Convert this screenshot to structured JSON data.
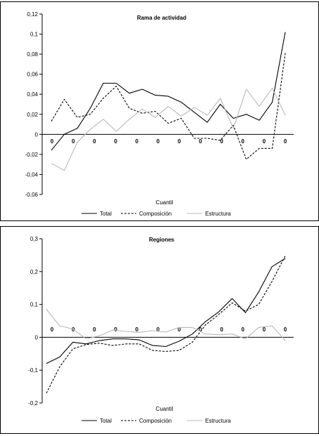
{
  "chart_data": [
    {
      "type": "line",
      "title": "Rama de actividad",
      "xlabel": "Cuantil",
      "ylabel": "",
      "ylim": [
        -0.06,
        0.12
      ],
      "yticks": [
        -0.06,
        -0.04,
        -0.02,
        0,
        0.02,
        0.04,
        0.06,
        0.08,
        0.1,
        0.12
      ],
      "ytick_labels": [
        "-0,06",
        "-0,04",
        "-0,02",
        "0",
        "0,02",
        "0,04",
        "0,06",
        "0,08",
        "0,1",
        "0,12"
      ],
      "xtick_labels": [
        "0",
        "0",
        "0",
        "0",
        "0",
        "0",
        "0",
        "0",
        "0",
        "0",
        "0",
        "0"
      ],
      "legend_position": "bottom",
      "series": [
        {
          "name": "Total",
          "style": "solid",
          "color": "#000000",
          "values": [
            -0.016,
            0.0,
            0.006,
            0.026,
            0.051,
            0.051,
            0.041,
            0.045,
            0.039,
            0.038,
            0.032,
            0.022,
            0.012,
            0.03,
            0.016,
            0.02,
            0.014,
            0.032,
            0.102
          ]
        },
        {
          "name": "Composición",
          "style": "dashed",
          "color": "#000000",
          "values": [
            0.013,
            0.035,
            0.017,
            0.02,
            0.036,
            0.048,
            0.026,
            0.021,
            0.023,
            0.011,
            0.016,
            -0.004,
            -0.004,
            -0.006,
            0.009,
            -0.025,
            -0.014,
            -0.014,
            0.081
          ]
        },
        {
          "name": "Estructura",
          "style": "solid",
          "color": "#b8b8b8",
          "values": [
            -0.029,
            -0.036,
            -0.008,
            0.005,
            0.015,
            0.003,
            0.015,
            0.025,
            0.017,
            0.028,
            0.018,
            0.027,
            0.019,
            0.036,
            0.006,
            0.045,
            0.028,
            0.046,
            0.019
          ]
        }
      ]
    },
    {
      "type": "line",
      "title": "Regiones",
      "xlabel": "Cuantil",
      "ylabel": "",
      "ylim": [
        -0.2,
        0.3
      ],
      "yticks": [
        -0.2,
        -0.1,
        0,
        0.1,
        0.2,
        0.3
      ],
      "ytick_labels": [
        "-0,2",
        "-0,1",
        "0",
        "0,1",
        "0,2",
        "0,3"
      ],
      "xtick_labels": [
        "0",
        "0",
        "0",
        "0",
        "0",
        "0",
        "0",
        "0",
        "0",
        "0",
        "0",
        "0"
      ],
      "legend_position": "bottom",
      "series": [
        {
          "name": "Total",
          "style": "solid",
          "color": "#000000",
          "values": [
            -0.08,
            -0.06,
            -0.015,
            -0.02,
            -0.01,
            -0.005,
            -0.005,
            -0.008,
            -0.025,
            -0.028,
            -0.012,
            0.01,
            0.048,
            0.078,
            0.118,
            0.075,
            0.138,
            0.215,
            0.24
          ]
        },
        {
          "name": "Composición",
          "style": "dashed",
          "color": "#000000",
          "values": [
            -0.17,
            -0.09,
            -0.035,
            -0.022,
            -0.018,
            -0.025,
            -0.02,
            -0.02,
            -0.04,
            -0.043,
            -0.04,
            -0.015,
            0.038,
            0.07,
            0.105,
            0.08,
            0.1,
            0.17,
            0.248
          ]
        },
        {
          "name": "Estructura",
          "style": "solid",
          "color": "#b8b8b8",
          "values": [
            0.085,
            0.035,
            0.025,
            -0.005,
            0.005,
            0.022,
            0.018,
            0.015,
            0.02,
            0.016,
            0.03,
            0.03,
            0.01,
            0.008,
            0.01,
            -0.005,
            0.03,
            0.035,
            -0.01
          ]
        }
      ]
    }
  ]
}
